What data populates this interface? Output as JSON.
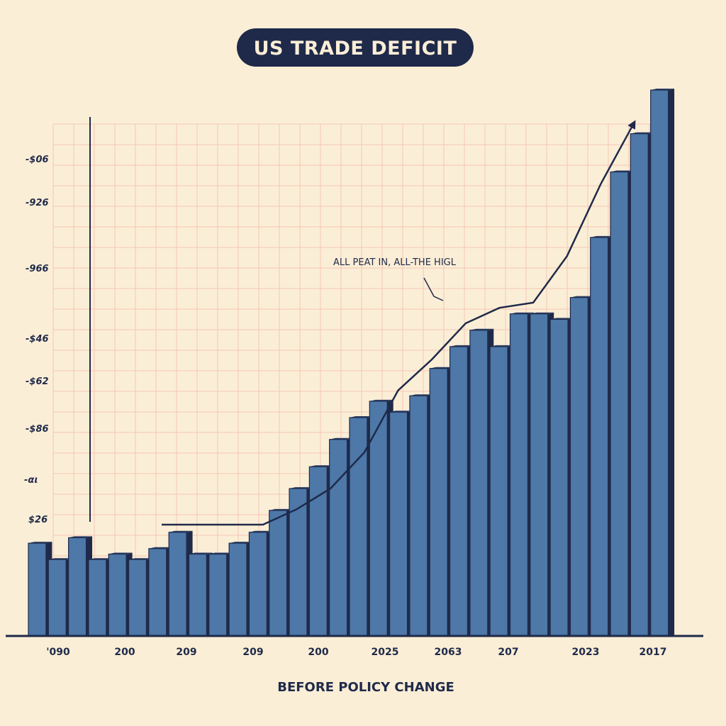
{
  "chart_data": {
    "type": "bar",
    "title": "US TRADE DEFICIT",
    "xlabel": "BEFORE POLICY CHANGE",
    "ylabel": "",
    "annotation": "ALL PEAT IN, ALL-THE HIGL",
    "y_tick_labels": [
      "$26",
      "-αι",
      "-$86",
      "-$62",
      "-$46",
      "-966",
      "-926",
      "-$06"
    ],
    "x_tick_labels": [
      "'090",
      "200",
      "209",
      "209",
      "200",
      "2025",
      "2063",
      "207",
      "2023",
      "2017"
    ],
    "ylim": [
      0,
      100
    ],
    "grid": true,
    "values": [
      17,
      14,
      18,
      14,
      15,
      14,
      16,
      19,
      15,
      15,
      17,
      19,
      23,
      27,
      31,
      36,
      40,
      43,
      41,
      44,
      49,
      53,
      56,
      53,
      59,
      59,
      58,
      62,
      73,
      85,
      92,
      100
    ],
    "trend_line": [
      22,
      22,
      22,
      22,
      25,
      29,
      36,
      48,
      54,
      61,
      64,
      65,
      74,
      88,
      100
    ],
    "colors": {
      "bar": "#4d78a8",
      "bar_shadow": "#1f2a4a",
      "grid": "#f4c7b5",
      "background": "#fbeed6",
      "title_bg": "#1f2a4a"
    }
  }
}
